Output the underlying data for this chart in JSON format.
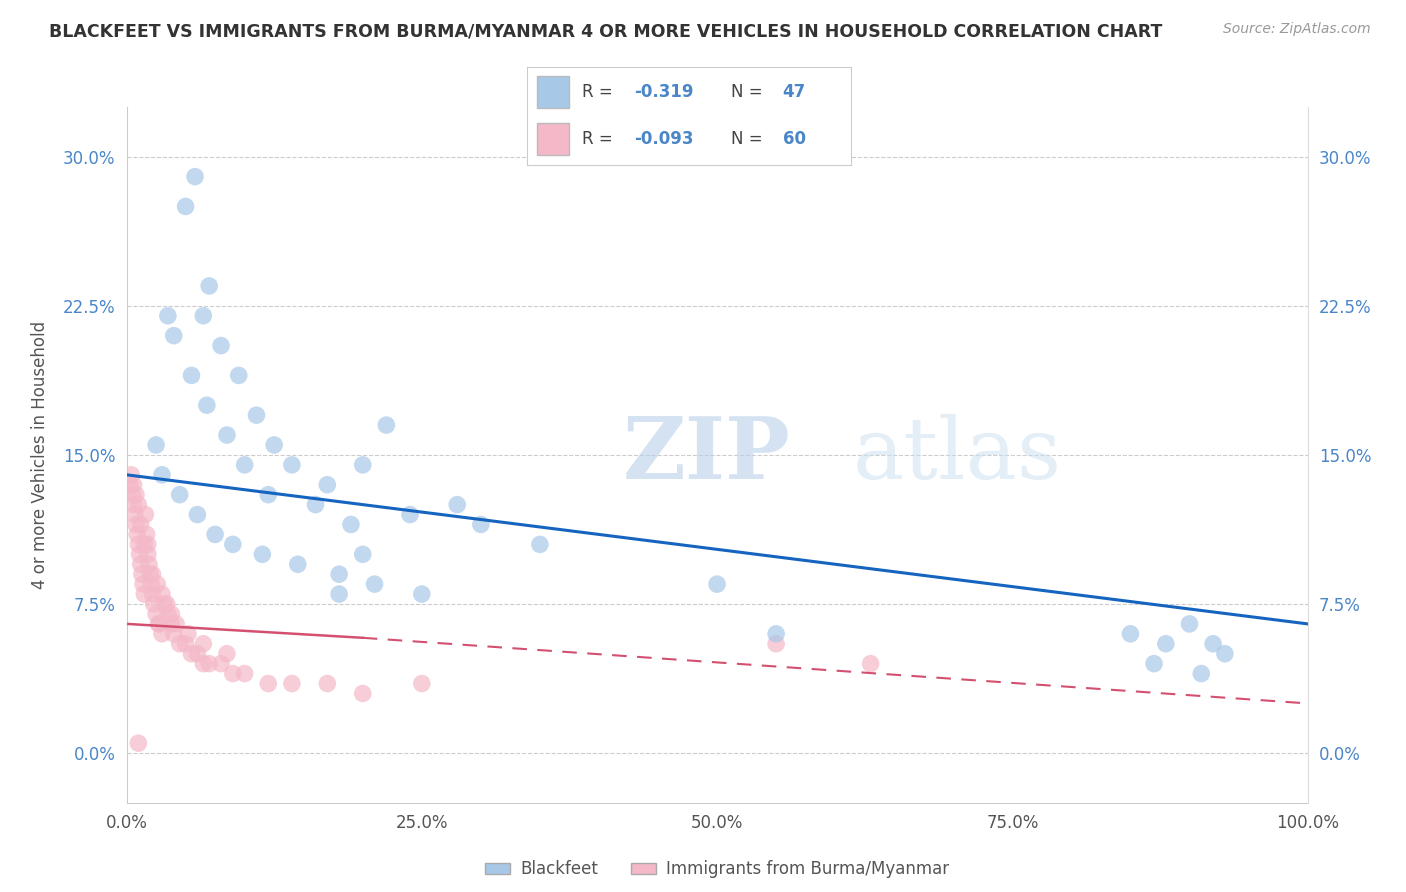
{
  "title": "BLACKFEET VS IMMIGRANTS FROM BURMA/MYANMAR 4 OR MORE VEHICLES IN HOUSEHOLD CORRELATION CHART",
  "source": "Source: ZipAtlas.com",
  "ylabel": "4 or more Vehicles in Household",
  "xlim": [
    0.0,
    100.0
  ],
  "ylim": [
    -2.5,
    32.5
  ],
  "yticks": [
    0.0,
    7.5,
    15.0,
    22.5,
    30.0
  ],
  "ytick_labels": [
    "0.0%",
    "7.5%",
    "15.0%",
    "22.5%",
    "30.0%"
  ],
  "xticks": [
    0.0,
    25.0,
    50.0,
    75.0,
    100.0
  ],
  "xtick_labels": [
    "0.0%",
    "25.0%",
    "50.0%",
    "75.0%",
    "100.0%"
  ],
  "blue_color": "#a8c8e8",
  "blue_line_color": "#1565c0",
  "pink_color": "#f4b8c8",
  "pink_line_color": "#d45070",
  "legend_label_blue": "Blackfeet",
  "legend_label_pink": "Immigrants from Burma/Myanmar",
  "watermark_zip": "ZIP",
  "watermark_atlas": "atlas",
  "blue_scatter_x": [
    5.0,
    5.8,
    7.0,
    6.5,
    8.0,
    9.5,
    11.0,
    12.5,
    14.0,
    17.0,
    20.0,
    3.5,
    4.0,
    5.5,
    6.8,
    8.5,
    10.0,
    12.0,
    16.0,
    19.0,
    22.0,
    24.0,
    2.5,
    3.0,
    4.5,
    6.0,
    7.5,
    9.0,
    11.5,
    14.5,
    18.0,
    21.0,
    25.0,
    30.0,
    35.0,
    28.0,
    20.0,
    18.0,
    50.0,
    55.0,
    85.0,
    88.0,
    90.0,
    92.0,
    93.0,
    87.0,
    91.0
  ],
  "blue_scatter_y": [
    27.5,
    29.0,
    23.5,
    22.0,
    20.5,
    19.0,
    17.0,
    15.5,
    14.5,
    13.5,
    14.5,
    22.0,
    21.0,
    19.0,
    17.5,
    16.0,
    14.5,
    13.0,
    12.5,
    11.5,
    16.5,
    12.0,
    15.5,
    14.0,
    13.0,
    12.0,
    11.0,
    10.5,
    10.0,
    9.5,
    9.0,
    8.5,
    8.0,
    11.5,
    10.5,
    12.5,
    10.0,
    8.0,
    8.5,
    6.0,
    6.0,
    5.5,
    6.5,
    5.5,
    5.0,
    4.5,
    4.0
  ],
  "pink_scatter_x": [
    0.3,
    0.5,
    0.6,
    0.7,
    0.8,
    0.9,
    1.0,
    1.1,
    1.2,
    1.3,
    1.4,
    1.5,
    1.6,
    1.7,
    1.8,
    1.9,
    2.0,
    2.1,
    2.2,
    2.3,
    2.5,
    2.7,
    2.8,
    3.0,
    3.2,
    3.5,
    3.8,
    4.0,
    4.5,
    5.0,
    5.5,
    6.0,
    6.5,
    7.0,
    8.0,
    9.0,
    10.0,
    12.0,
    14.0,
    17.0,
    20.0,
    25.0,
    0.4,
    0.6,
    0.8,
    1.0,
    1.2,
    1.5,
    1.8,
    2.2,
    2.6,
    3.0,
    3.4,
    3.8,
    4.2,
    5.2,
    6.5,
    8.5,
    55.0,
    63.0,
    1.0
  ],
  "pink_scatter_y": [
    13.5,
    13.0,
    12.5,
    12.0,
    11.5,
    11.0,
    10.5,
    10.0,
    9.5,
    9.0,
    8.5,
    8.0,
    12.0,
    11.0,
    10.5,
    9.5,
    9.0,
    8.5,
    8.0,
    7.5,
    7.0,
    6.5,
    6.5,
    6.0,
    7.5,
    7.0,
    6.5,
    6.0,
    5.5,
    5.5,
    5.0,
    5.0,
    4.5,
    4.5,
    4.5,
    4.0,
    4.0,
    3.5,
    3.5,
    3.5,
    3.0,
    3.5,
    14.0,
    13.5,
    13.0,
    12.5,
    11.5,
    10.5,
    10.0,
    9.0,
    8.5,
    8.0,
    7.5,
    7.0,
    6.5,
    6.0,
    5.5,
    5.0,
    5.5,
    4.5,
    0.5
  ],
  "blue_line_x0": 0,
  "blue_line_x1": 100,
  "blue_line_y0": 14.0,
  "blue_line_y1": 6.5,
  "pink_solid_x0": 0,
  "pink_solid_x1": 20,
  "pink_solid_y0": 6.5,
  "pink_solid_y1": 5.8,
  "pink_dash_x0": 20,
  "pink_dash_x1": 100,
  "pink_dash_y0": 5.8,
  "pink_dash_y1": 2.5
}
